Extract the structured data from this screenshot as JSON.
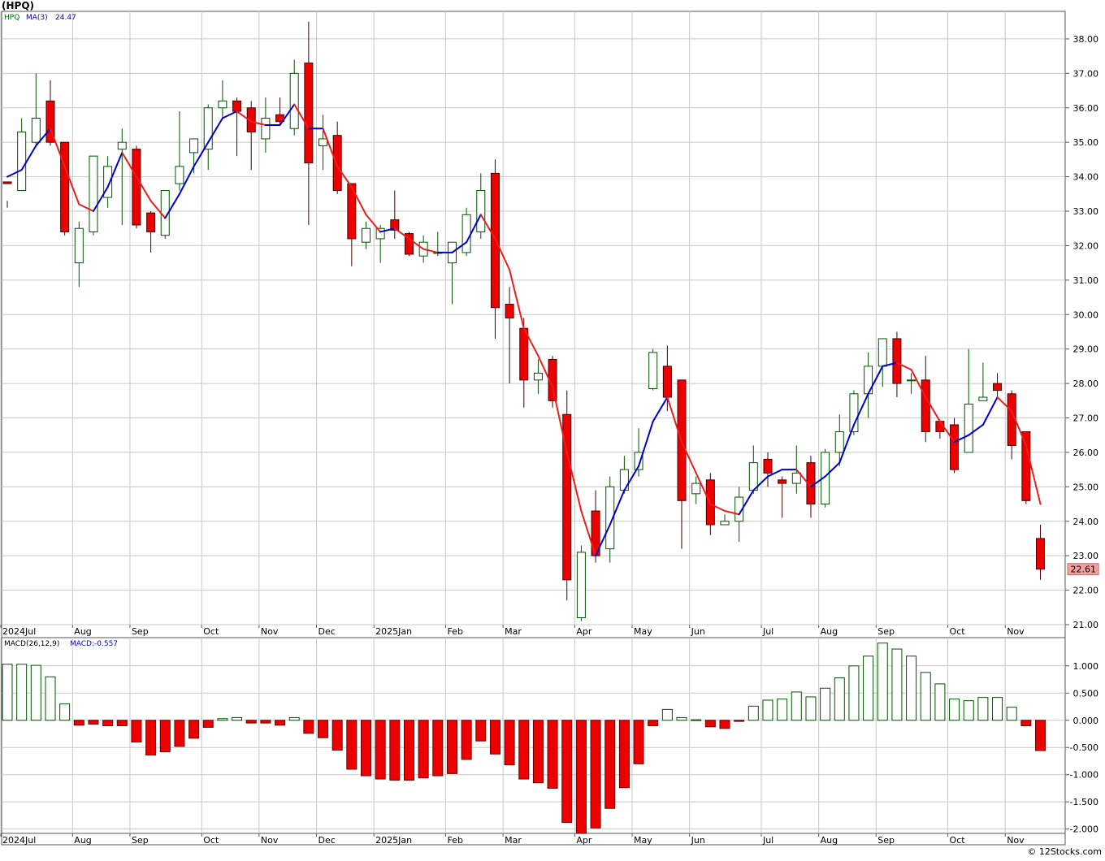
{
  "chart_data": [
    {
      "type": "candlestick",
      "title": "(HPQ)",
      "legend": {
        "symbol": "HPQ",
        "ma_label": "MA(3)",
        "ma_value": "24.47"
      },
      "ylim": [
        21.0,
        38.8
      ],
      "yticks": [
        "38.00",
        "37.00",
        "36.00",
        "35.00",
        "34.00",
        "33.00",
        "32.00",
        "31.00",
        "30.00",
        "29.00",
        "28.00",
        "27.00",
        "26.00",
        "25.00",
        "24.00",
        "23.00",
        "22.00",
        "21.00"
      ],
      "last_price": "22.61",
      "xtick_labels": [
        "2024Jul",
        "Aug",
        "Sep",
        "Oct",
        "Nov",
        "Dec",
        "2025Jan",
        "Feb",
        "Mar",
        "Apr",
        "May",
        "Jun",
        "Jul",
        "Aug",
        "Sep",
        "Oct",
        "Nov"
      ],
      "xtick_weeks": [
        0,
        5,
        9,
        14,
        18,
        22,
        26,
        31,
        35,
        40,
        44,
        48,
        53,
        57,
        61,
        66,
        70
      ],
      "candles": [
        [
          33.85,
          33.8,
          33.3,
          33.1
        ],
        [
          33.6,
          35.3,
          35.7,
          33.6
        ],
        [
          35.0,
          35.7,
          37.0,
          34.9
        ],
        [
          36.2,
          35.0,
          36.8,
          34.9
        ],
        [
          35.0,
          32.4,
          35.0,
          32.3
        ],
        [
          31.5,
          32.5,
          32.7,
          30.8
        ],
        [
          32.4,
          34.6,
          34.6,
          32.3
        ],
        [
          33.4,
          34.3,
          34.6,
          33.1
        ],
        [
          34.8,
          35.0,
          35.4,
          32.6
        ],
        [
          34.8,
          32.6,
          34.9,
          32.5
        ],
        [
          32.95,
          32.4,
          33.0,
          31.8
        ],
        [
          32.3,
          33.6,
          33.6,
          32.2
        ],
        [
          33.8,
          34.3,
          35.9,
          33.6
        ],
        [
          34.7,
          35.1,
          35.1,
          34.1
        ],
        [
          34.8,
          36.0,
          36.1,
          34.2
        ],
        [
          36.0,
          36.2,
          36.8,
          35.7
        ],
        [
          36.2,
          35.9,
          36.3,
          34.6
        ],
        [
          36.0,
          35.3,
          36.2,
          34.2
        ],
        [
          35.1,
          35.7,
          36.3,
          34.7
        ],
        [
          35.8,
          35.6,
          36.3,
          35.5
        ],
        [
          35.4,
          37.0,
          37.4,
          35.2
        ],
        [
          37.3,
          34.4,
          38.5,
          32.6
        ],
        [
          34.9,
          35.1,
          35.8,
          34.2
        ],
        [
          35.2,
          33.6,
          35.6,
          33.5
        ],
        [
          33.8,
          32.2,
          33.8,
          31.4
        ],
        [
          32.1,
          32.5,
          32.7,
          31.9
        ],
        [
          32.2,
          32.5,
          32.6,
          31.5
        ],
        [
          32.75,
          32.45,
          33.6,
          32.2
        ],
        [
          32.35,
          31.75,
          32.4,
          31.7
        ],
        [
          31.7,
          32.1,
          32.3,
          31.5
        ],
        [
          31.8,
          31.8,
          32.4,
          31.7
        ],
        [
          31.5,
          32.1,
          32.1,
          30.3
        ],
        [
          31.8,
          32.9,
          33.1,
          31.7
        ],
        [
          32.4,
          33.6,
          34.1,
          32.2
        ],
        [
          34.1,
          30.2,
          34.5,
          29.3
        ],
        [
          30.3,
          29.9,
          30.8,
          28.0
        ],
        [
          29.6,
          28.1,
          29.9,
          27.3
        ],
        [
          28.1,
          28.3,
          28.7,
          27.7
        ],
        [
          28.7,
          27.5,
          28.8,
          27.3
        ],
        [
          27.1,
          22.3,
          27.8,
          21.7
        ],
        [
          21.2,
          23.1,
          23.3,
          21.1
        ],
        [
          24.3,
          23.0,
          24.9,
          22.8
        ],
        [
          23.2,
          25.0,
          25.3,
          22.8
        ],
        [
          24.9,
          25.5,
          25.9,
          24.8
        ],
        [
          25.5,
          26.0,
          26.7,
          25.3
        ],
        [
          27.85,
          28.9,
          29.0,
          27.8
        ],
        [
          28.5,
          27.6,
          29.1,
          27.2
        ],
        [
          28.1,
          24.6,
          28.1,
          23.2
        ],
        [
          24.8,
          25.1,
          25.3,
          24.5
        ],
        [
          25.2,
          23.9,
          25.4,
          23.6
        ],
        [
          23.9,
          24.0,
          24.2,
          23.9
        ],
        [
          24.0,
          24.7,
          25.0,
          23.4
        ],
        [
          24.9,
          25.7,
          26.2,
          24.8
        ],
        [
          25.8,
          25.4,
          26.0,
          25.0
        ],
        [
          25.2,
          25.1,
          25.3,
          24.1
        ],
        [
          25.1,
          25.4,
          26.2,
          24.8
        ],
        [
          25.7,
          24.5,
          25.9,
          24.1
        ],
        [
          24.5,
          26.0,
          26.1,
          24.4
        ],
        [
          26.0,
          26.6,
          27.1,
          25.6
        ],
        [
          26.6,
          27.7,
          27.8,
          26.5
        ],
        [
          27.7,
          28.5,
          28.9,
          27.0
        ],
        [
          28.5,
          29.3,
          29.3,
          27.9
        ],
        [
          29.3,
          28.0,
          29.5,
          27.6
        ],
        [
          28.1,
          28.1,
          28.3,
          27.7
        ],
        [
          28.1,
          26.6,
          28.8,
          26.3
        ],
        [
          26.9,
          26.6,
          26.9,
          26.4
        ],
        [
          26.8,
          25.5,
          27.0,
          25.4
        ],
        [
          26.0,
          27.4,
          29.0,
          26.0
        ],
        [
          27.5,
          27.6,
          28.6,
          27.5
        ],
        [
          28.0,
          27.8,
          28.3,
          27.6
        ],
        [
          27.7,
          26.2,
          27.8,
          25.8
        ],
        [
          26.6,
          24.6,
          26.6,
          24.5
        ],
        [
          23.5,
          22.61,
          23.9,
          22.3
        ]
      ],
      "ma3": [
        34.0,
        34.2,
        34.9,
        35.4,
        34.3,
        33.2,
        33.0,
        33.7,
        34.7,
        34.0,
        33.3,
        32.8,
        33.5,
        34.3,
        35.0,
        35.7,
        35.9,
        35.6,
        35.5,
        35.5,
        36.1,
        35.4,
        35.4,
        34.3,
        33.7,
        32.9,
        32.4,
        32.5,
        32.2,
        31.9,
        31.8,
        31.8,
        32.1,
        32.9,
        32.2,
        31.3,
        29.6,
        28.8,
        27.9,
        26.0,
        24.3,
        23.0,
        23.9,
        24.9,
        25.6,
        26.9,
        27.6,
        26.3,
        25.4,
        24.5,
        24.3,
        24.2,
        24.9,
        25.3,
        25.5,
        25.5,
        25.0,
        25.3,
        25.7,
        26.8,
        27.7,
        28.5,
        28.6,
        28.4,
        27.6,
        26.9,
        26.3,
        26.5,
        26.8,
        27.6,
        27.2,
        26.2,
        24.5
      ],
      "ma_colors": {
        "up": "#0000cc",
        "down": "#ee1c1c"
      },
      "colors": {
        "up_body": "#ffffff",
        "up_line": "#005500",
        "down_body": "#ee0000",
        "down_line": "#440000",
        "grid": "#c8c8c8",
        "price_tag": "#f4a0a0"
      }
    },
    {
      "type": "bar",
      "title": "MACD(26,12,9)",
      "legend": {
        "label": "MACD(26,12,9)",
        "value_label": "MACD:-0.557"
      },
      "ylim": [
        -2.08,
        1.52
      ],
      "yticks": [
        "1.000",
        "0.500",
        "0.000",
        "-0.500",
        "-1.000",
        "-1.500",
        "-2.000"
      ],
      "xtick_labels": [
        "2024Jul",
        "Aug",
        "Sep",
        "Oct",
        "Nov",
        "Dec",
        "2025Jan",
        "Feb",
        "Mar",
        "Apr",
        "May",
        "Jun",
        "Jul",
        "Aug",
        "Sep",
        "Oct",
        "Nov"
      ],
      "values": [
        1.03,
        1.03,
        1.01,
        0.8,
        0.3,
        -0.09,
        -0.07,
        -0.1,
        -0.1,
        -0.4,
        -0.64,
        -0.58,
        -0.48,
        -0.33,
        -0.13,
        0.03,
        0.05,
        -0.05,
        -0.05,
        -0.09,
        0.05,
        -0.24,
        -0.32,
        -0.55,
        -0.9,
        -1.02,
        -1.08,
        -1.1,
        -1.1,
        -1.06,
        -1.02,
        -0.98,
        -0.72,
        -0.38,
        -0.62,
        -0.82,
        -1.08,
        -1.15,
        -1.25,
        -1.88,
        -2.08,
        -1.98,
        -1.62,
        -1.24,
        -0.8,
        -0.1,
        0.2,
        0.05,
        0.01,
        -0.12,
        -0.15,
        -0.02,
        0.26,
        0.37,
        0.39,
        0.52,
        0.43,
        0.59,
        0.78,
        1.0,
        1.18,
        1.42,
        1.31,
        1.18,
        0.88,
        0.67,
        0.39,
        0.36,
        0.42,
        0.42,
        0.24,
        -0.1,
        -0.557
      ],
      "colors": {
        "positive_fill": "#ffffff",
        "positive_line": "#005500",
        "negative_fill": "#ee0000",
        "negative_line": "#660000",
        "grid": "#c8c8c8"
      }
    }
  ],
  "credit": "© 12Stocks.com"
}
